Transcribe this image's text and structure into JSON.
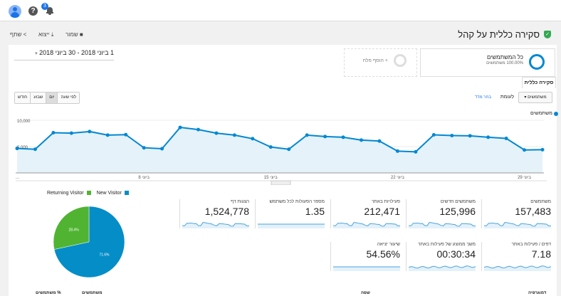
{
  "topbar": {
    "notifications": "3",
    "icons": [
      "avatar-icon",
      "help-icon",
      "bell-icon"
    ]
  },
  "toolbar": {
    "save": "שמור",
    "export": "ייצוא",
    "share": "שתף"
  },
  "page_title": "סקירה כללית על קהל",
  "segment": {
    "name": "כל המשתמשים",
    "sub": "100.00% משתמשים",
    "add": "+ הוסף פלח"
  },
  "date_range": "1 ביוני 2018 - 30 ביוני 2018",
  "tab": "סקירה כללית",
  "metric_select": "משתמשים",
  "versus": "לעומת",
  "choose_metric": "בחר מדד",
  "granularity": [
    "לפי שעה",
    "יום",
    "שבוע",
    "חודש"
  ],
  "active_granularity": "יום",
  "colors": {
    "accent": "#0288d1",
    "new": "#058dc7",
    "returning": "#50b432"
  },
  "chart_data": {
    "type": "line",
    "series_name": "משתמשים",
    "ylim": [
      0,
      10000
    ],
    "yticks": [
      "10,000",
      "5,000"
    ],
    "ytick_values": [
      10000,
      5000
    ],
    "x": [
      1,
      2,
      3,
      4,
      5,
      6,
      7,
      8,
      9,
      10,
      11,
      12,
      13,
      14,
      15,
      16,
      17,
      18,
      19,
      20,
      21,
      22,
      23,
      24,
      25,
      26,
      27,
      28,
      29,
      30
    ],
    "values": [
      4640,
      4500,
      7640,
      7550,
      7860,
      7180,
      7270,
      4770,
      4590,
      8640,
      8230,
      7550,
      7180,
      6500,
      4910,
      4500,
      7180,
      6910,
      6770,
      6230,
      6050,
      4140,
      4000,
      7230,
      7090,
      7050,
      6770,
      6550,
      4360,
      4410
    ],
    "xticks": [
      {
        "day": 8,
        "label": "8 ביוני"
      },
      {
        "day": 15,
        "label": "15 ביוני"
      },
      {
        "day": 22,
        "label": "22 ביוני"
      },
      {
        "day": 29,
        "label": "29 ביוני"
      }
    ],
    "xstart": "..."
  },
  "metrics": [
    {
      "label": "משתמשים",
      "value": "157,483"
    },
    {
      "label": "משתמשים חדשים",
      "value": "125,996"
    },
    {
      "label": "פעילויות באתר",
      "value": "212,471"
    },
    {
      "label": "מספר הפעולות לכל משתמש",
      "value": "1.35"
    },
    {
      "label": "הצגות דף",
      "value": "1,524,778"
    },
    {
      "label": "דפים / פעילות באתר",
      "value": "7.18"
    },
    {
      "label": "משך ממוצע של פעילות באתר",
      "value": "00:30:34"
    },
    {
      "label": "שיעור יציאה",
      "value": "54.56%"
    }
  ],
  "pie": {
    "type": "pie",
    "legend": [
      "New Visitor",
      "Returning Visitor"
    ],
    "values": [
      71.6,
      28.4
    ],
    "labels": [
      "71.6%",
      "28.4%"
    ]
  },
  "footer": {
    "col1": "% משתמשים",
    "col2": "משתמשים",
    "col3": "שפה",
    "col4": "דמוגרפיה"
  }
}
